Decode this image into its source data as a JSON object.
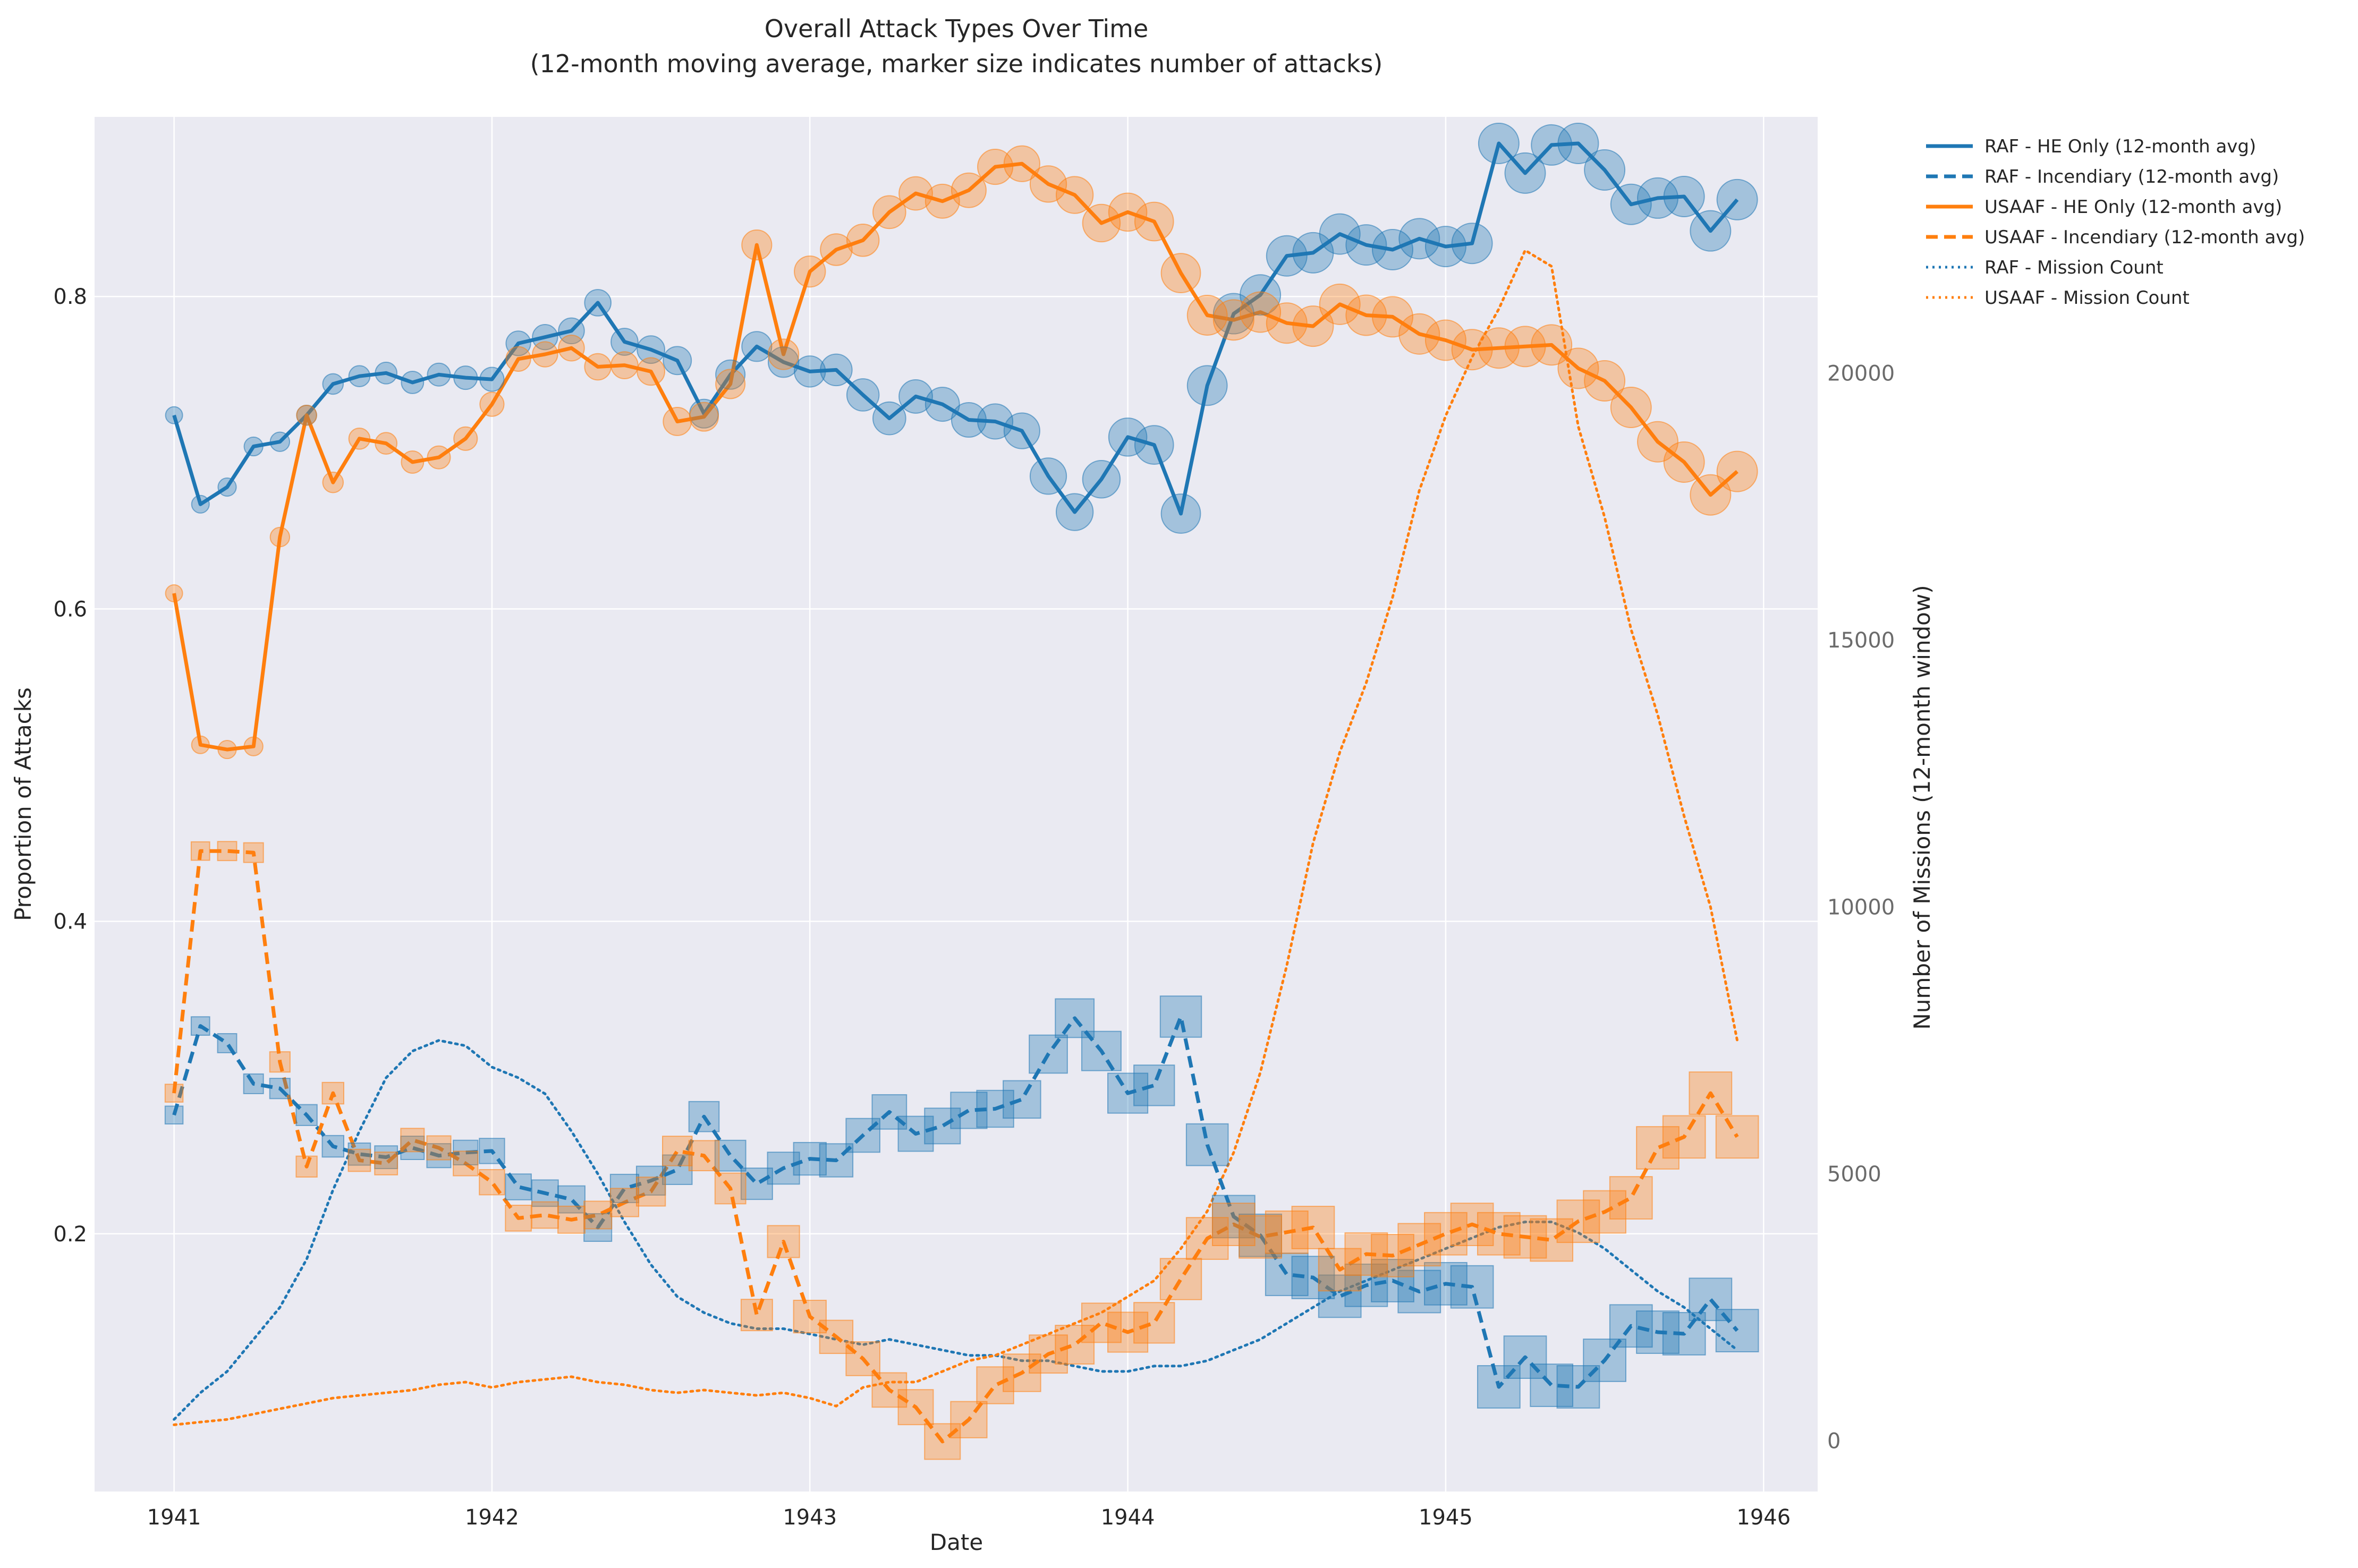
{
  "chart_data": {
    "type": "line",
    "title": "Overall Attack Types Over Time",
    "subtitle": "(12-month moving average, marker size indicates number of attacks)",
    "xlabel": "Date",
    "ylabel": "Proportion of Attacks",
    "y2label": "Number of Missions (12-month window)",
    "x_ticks": [
      "1941",
      "1942",
      "1943",
      "1944",
      "1945",
      "1946"
    ],
    "y_ticks": [
      "0.2",
      "0.4",
      "0.6",
      "0.8"
    ],
    "y2_ticks": [
      "0",
      "5000",
      "10000",
      "15000",
      "20000"
    ],
    "xlim": [
      1940.75,
      1946.17
    ],
    "ylim": [
      0.035,
      0.915
    ],
    "y2lim": [
      -950,
      24800
    ],
    "grid": true,
    "legend_position": "outside-top-right",
    "colors": {
      "raf": "#1f77b4",
      "usaaf": "#ff7f0e",
      "plot_bg": "#eaeaf2",
      "grid": "#ffffff"
    },
    "x": [
      1941.0,
      1941.083,
      1941.167,
      1941.25,
      1941.333,
      1941.417,
      1941.5,
      1941.583,
      1941.667,
      1941.75,
      1941.833,
      1941.917,
      1942.0,
      1942.083,
      1942.167,
      1942.25,
      1942.333,
      1942.417,
      1942.5,
      1942.583,
      1942.667,
      1942.75,
      1942.833,
      1942.917,
      1943.0,
      1943.083,
      1943.167,
      1943.25,
      1943.333,
      1943.417,
      1943.5,
      1943.583,
      1943.667,
      1943.75,
      1943.833,
      1943.917,
      1944.0,
      1944.083,
      1944.167,
      1944.25,
      1944.333,
      1944.417,
      1944.5,
      1944.583,
      1944.667,
      1944.75,
      1944.833,
      1944.917,
      1945.0,
      1945.083,
      1945.167,
      1945.25,
      1945.333,
      1945.417,
      1945.5,
      1945.583,
      1945.667,
      1945.75,
      1945.833,
      1945.917
    ],
    "series": [
      {
        "name": "RAF - HE Only (12-month avg)",
        "color": "#1f77b4",
        "style": "solid",
        "marker": "circle",
        "axis": "left",
        "values": [
          0.724,
          0.667,
          0.678,
          0.704,
          0.707,
          0.724,
          0.744,
          0.749,
          0.751,
          0.745,
          0.75,
          0.748,
          0.747,
          0.77,
          0.774,
          0.778,
          0.796,
          0.771,
          0.766,
          0.759,
          0.725,
          0.75,
          0.768,
          0.758,
          0.752,
          0.753,
          0.737,
          0.722,
          0.736,
          0.731,
          0.721,
          0.72,
          0.714,
          0.685,
          0.662,
          0.683,
          0.71,
          0.705,
          0.661,
          0.743,
          0.789,
          0.801,
          0.826,
          0.828,
          0.84,
          0.833,
          0.83,
          0.837,
          0.832,
          0.834,
          0.898,
          0.879,
          0.897,
          0.898,
          0.881,
          0.859,
          0.863,
          0.864,
          0.842,
          0.862
        ]
      },
      {
        "name": "RAF - Incendiary (12-month avg)",
        "color": "#1f77b4",
        "style": "dashed",
        "marker": "square",
        "axis": "left",
        "values": [
          0.276,
          0.333,
          0.322,
          0.296,
          0.293,
          0.276,
          0.256,
          0.251,
          0.249,
          0.255,
          0.25,
          0.252,
          0.253,
          0.23,
          0.226,
          0.222,
          0.204,
          0.229,
          0.234,
          0.241,
          0.275,
          0.25,
          0.232,
          0.242,
          0.248,
          0.247,
          0.263,
          0.278,
          0.264,
          0.269,
          0.279,
          0.28,
          0.286,
          0.315,
          0.338,
          0.317,
          0.29,
          0.295,
          0.339,
          0.257,
          0.211,
          0.199,
          0.174,
          0.172,
          0.16,
          0.167,
          0.17,
          0.163,
          0.168,
          0.166,
          0.102,
          0.121,
          0.103,
          0.102,
          0.119,
          0.141,
          0.137,
          0.136,
          0.158,
          0.138
        ]
      },
      {
        "name": "USAAF - HE Only (12-month avg)",
        "color": "#ff7f0e",
        "style": "solid",
        "marker": "circle",
        "axis": "left",
        "values": [
          0.61,
          0.513,
          0.51,
          0.512,
          0.646,
          0.724,
          0.681,
          0.709,
          0.706,
          0.694,
          0.697,
          0.709,
          0.731,
          0.76,
          0.763,
          0.767,
          0.755,
          0.756,
          0.752,
          0.72,
          0.723,
          0.744,
          0.833,
          0.763,
          0.816,
          0.83,
          0.836,
          0.854,
          0.866,
          0.861,
          0.868,
          0.883,
          0.885,
          0.872,
          0.865,
          0.847,
          0.854,
          0.848,
          0.815,
          0.788,
          0.785,
          0.79,
          0.783,
          0.781,
          0.795,
          0.788,
          0.787,
          0.776,
          0.772,
          0.766,
          0.767,
          0.768,
          0.769,
          0.754,
          0.746,
          0.729,
          0.707,
          0.694,
          0.673,
          0.688
        ]
      },
      {
        "name": "USAAF - Incendiary (12-month avg)",
        "color": "#ff7f0e",
        "style": "dashed",
        "marker": "square",
        "axis": "left",
        "values": [
          0.29,
          0.445,
          0.445,
          0.444,
          0.31,
          0.243,
          0.29,
          0.247,
          0.245,
          0.26,
          0.255,
          0.245,
          0.233,
          0.21,
          0.212,
          0.209,
          0.212,
          0.22,
          0.227,
          0.253,
          0.25,
          0.229,
          0.148,
          0.195,
          0.147,
          0.134,
          0.12,
          0.1,
          0.089,
          0.067,
          0.081,
          0.103,
          0.111,
          0.123,
          0.129,
          0.143,
          0.137,
          0.143,
          0.171,
          0.197,
          0.206,
          0.198,
          0.201,
          0.204,
          0.177,
          0.187,
          0.186,
          0.193,
          0.2,
          0.206,
          0.2,
          0.198,
          0.196,
          0.208,
          0.214,
          0.223,
          0.255,
          0.262,
          0.29,
          0.262
        ]
      },
      {
        "name": "RAF - Mission Count",
        "color": "#1f77b4",
        "style": "dotted",
        "marker": "none",
        "axis": "right",
        "values": [
          400,
          900,
          1300,
          1900,
          2500,
          3400,
          4700,
          5800,
          6800,
          7300,
          7500,
          7400,
          7000,
          6800,
          6500,
          5800,
          5000,
          4100,
          3300,
          2700,
          2400,
          2200,
          2100,
          2100,
          2000,
          1900,
          1800,
          1900,
          1800,
          1700,
          1600,
          1600,
          1500,
          1500,
          1400,
          1300,
          1300,
          1400,
          1400,
          1500,
          1700,
          1900,
          2200,
          2500,
          2800,
          3000,
          3200,
          3400,
          3600,
          3800,
          4000,
          4100,
          4100,
          3900,
          3600,
          3200,
          2800,
          2500,
          2100,
          1700
        ]
      },
      {
        "name": "USAAF - Mission Count",
        "color": "#ff7f0e",
        "style": "dotted",
        "marker": "none",
        "axis": "right",
        "values": [
          300,
          350,
          400,
          500,
          600,
          700,
          800,
          850,
          900,
          950,
          1050,
          1100,
          1000,
          1100,
          1150,
          1200,
          1100,
          1050,
          950,
          900,
          950,
          900,
          850,
          900,
          800,
          650,
          1000,
          1100,
          1100,
          1300,
          1500,
          1600,
          1800,
          2000,
          2200,
          2400,
          2700,
          3000,
          3600,
          4300,
          5400,
          6900,
          8900,
          11200,
          12900,
          14200,
          15800,
          17800,
          19200,
          20300,
          21200,
          22300,
          22000,
          19000,
          17300,
          15200,
          13600,
          11700,
          10000,
          7500
        ]
      }
    ]
  }
}
